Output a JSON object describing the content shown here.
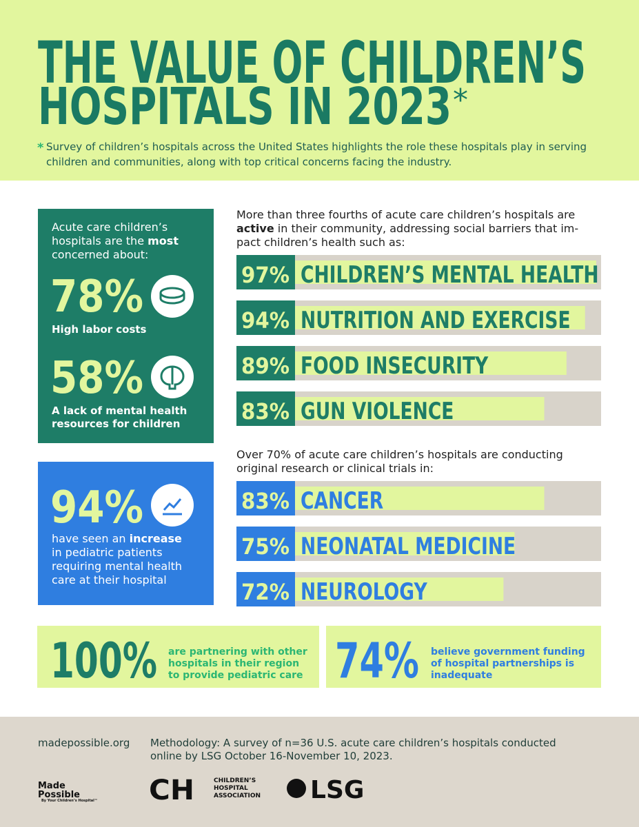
{
  "header": {
    "title": [
      "THE VALUE OF CHILDREN’S",
      "HOSPITALS IN 2023"
    ],
    "asterisk": "*",
    "note_mark": "*",
    "note": [
      "Survey of children’s hospitals across the United States highlights the role these hospitals play in serving",
      "children and communities, along with top critical concerns facing the industry."
    ]
  },
  "concerns": {
    "intro": [
      [
        {
          "text": "Acute care children’s"
        }
      ],
      [
        {
          "text": "hospitals are the "
        },
        {
          "text": "most",
          "bold": true
        }
      ],
      [
        {
          "text": "concerned about:"
        }
      ]
    ],
    "items": [
      {
        "stat": "78%",
        "caption": [
          "High labor costs"
        ]
      },
      {
        "stat": "58%",
        "caption": [
          "A lack of mental health",
          "resources for children"
        ]
      }
    ]
  },
  "increase": {
    "stat": "94%",
    "caption": [
      [
        {
          "text": "have seen an "
        },
        {
          "text": "increase",
          "bold": true
        }
      ],
      [
        {
          "text": "in pediatric patients"
        }
      ],
      [
        {
          "text": "requiring mental health"
        }
      ],
      [
        {
          "text": "care at their hospital"
        }
      ]
    ]
  },
  "community": {
    "intro": [
      [
        {
          "text": "More than three fourths of acute care children’s hospitals are"
        }
      ],
      [
        {
          "text": "active",
          "bold": true
        },
        {
          "text": " in their community, addressing social barriers that im-"
        }
      ],
      [
        {
          "text": "pact children’s health such as:"
        }
      ]
    ],
    "items": [
      {
        "value": 97,
        "label": "97%",
        "name": "CHILDREN’S MENTAL HEALTH"
      },
      {
        "value": 94,
        "label": "94%",
        "name": "NUTRITION AND EXERCISE"
      },
      {
        "value": 89,
        "label": "89%",
        "name": "FOOD INSECURITY"
      },
      {
        "value": 83,
        "label": "83%",
        "name": "GUN VIOLENCE"
      }
    ]
  },
  "research": {
    "intro": [
      [
        {
          "text": "Over 70% of acute care children’s hospitals are conducting"
        }
      ],
      [
        {
          "text": "original research or clinical trials in:"
        }
      ]
    ],
    "items": [
      {
        "value": 83,
        "label": "83%",
        "name": "CANCER"
      },
      {
        "value": 75,
        "label": "75%",
        "name": "NEONATAL MEDICINE"
      },
      {
        "value": 72,
        "label": "72%",
        "name": "NEUROLOGY"
      }
    ]
  },
  "partners": [
    {
      "stat": "100%",
      "caption": [
        "are partnering with other",
        "hospitals in their region",
        "to provide pediatric care"
      ]
    },
    {
      "stat": "74%",
      "caption": [
        "believe government funding",
        "of hospital partnerships is",
        "inadequate"
      ]
    }
  ],
  "footer": {
    "site": "madepossible.org",
    "methodology": [
      "Methodology:  A survey of n=36 U.S. acute care children’s hospitals conducted",
      "online by LSG October 16-November 10, 2023."
    ],
    "logos": {
      "made": [
        "Made",
        "Possible"
      ],
      "made_tag": "By Your Children’s Hospital™",
      "cha_mark": "CH",
      "cha": [
        "CHILDREN’S",
        "HOSPITAL",
        "ASSOCIATION"
      ],
      "lsg": "LSG"
    }
  }
}
